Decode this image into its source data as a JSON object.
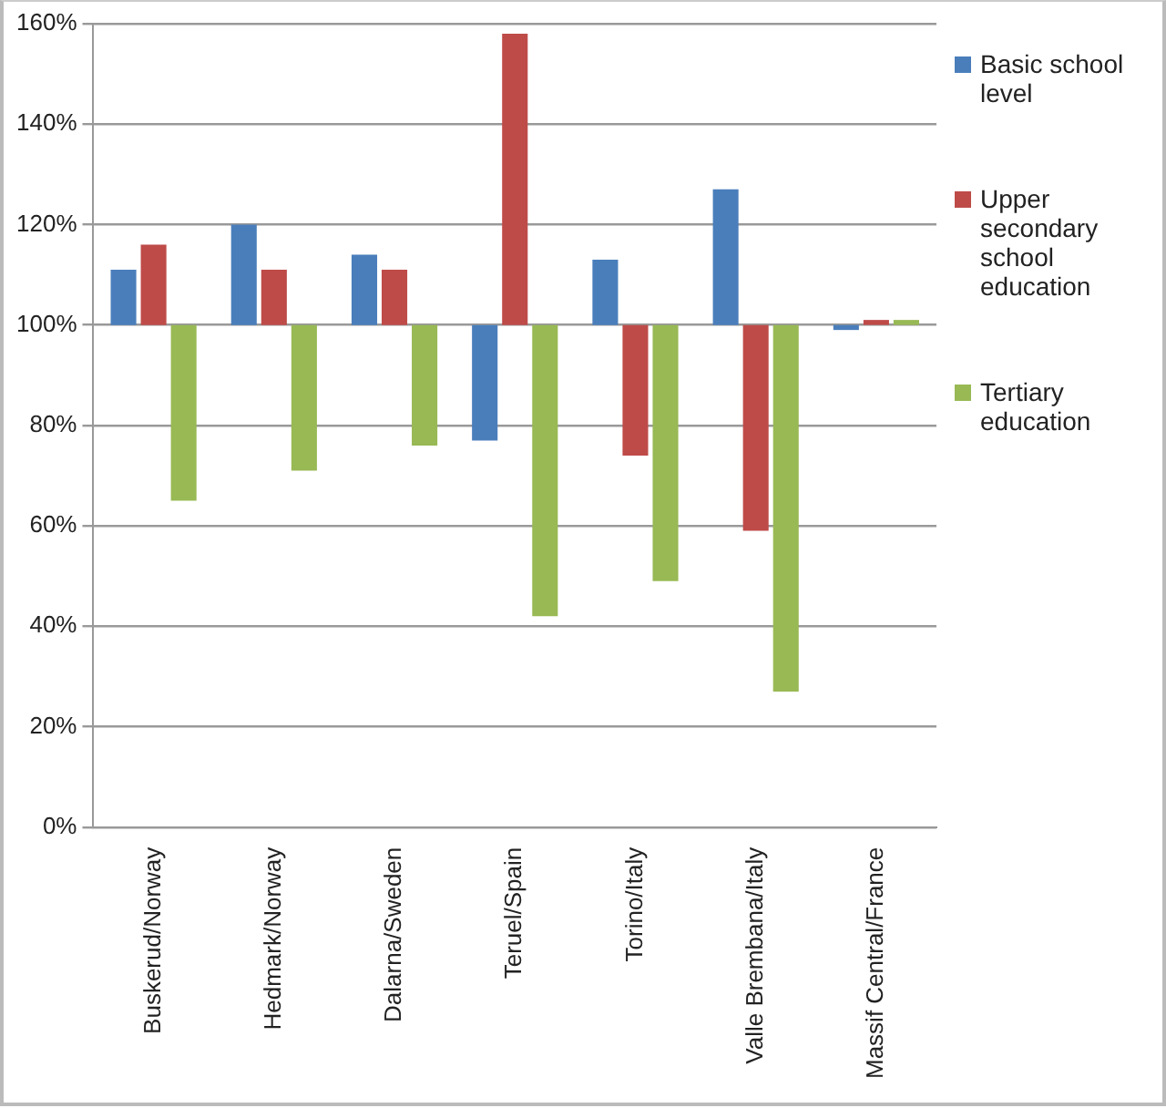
{
  "chart_data": {
    "type": "bar",
    "categories": [
      "Buskerud/Norway",
      "Hedmark/Norway",
      "Dalarna/Sweden",
      "Teruel/Spain",
      "Torino/Italy",
      "Valle Brembana/Italy",
      "Massif Central/France"
    ],
    "series": [
      {
        "name": "Basic school level",
        "color": "#4a7ebb",
        "base": [
          100,
          100,
          100,
          100,
          100,
          100,
          100
        ],
        "values": [
          11,
          20,
          14,
          -23,
          13,
          27,
          -1
        ]
      },
      {
        "name": "Upper secondary school education",
        "color": "#be4b48",
        "base": [
          100,
          100,
          100,
          100,
          100,
          100,
          100
        ],
        "values": [
          16,
          11,
          11,
          58,
          -26,
          -41,
          1
        ]
      },
      {
        "name": "Tertiary education",
        "color": "#98b954",
        "base": [
          100,
          100,
          100,
          100,
          100,
          100,
          100
        ],
        "values": [
          -35,
          -29,
          -24,
          -58,
          -51,
          -73,
          1
        ]
      }
    ],
    "ylim": [
      0,
      160
    ],
    "yticks": [
      {
        "value": 0,
        "label": "0%"
      },
      {
        "value": 20,
        "label": "20%"
      },
      {
        "value": 40,
        "label": "40%"
      },
      {
        "value": 60,
        "label": "60%"
      },
      {
        "value": 80,
        "label": "80%"
      },
      {
        "value": 100,
        "label": "100%"
      },
      {
        "value": 120,
        "label": "120%"
      },
      {
        "value": 140,
        "label": "140%"
      },
      {
        "value": 160,
        "label": "160%"
      }
    ],
    "grid": "y",
    "legend": "right"
  }
}
